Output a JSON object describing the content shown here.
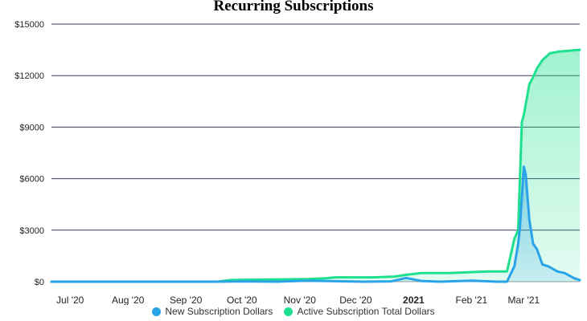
{
  "chart_data": {
    "type": "area",
    "title": "Recurring Subscriptions",
    "xlabel": "",
    "ylabel": "",
    "ylim": [
      0,
      15000
    ],
    "y_ticks": [
      0,
      3000,
      6000,
      9000,
      12000,
      15000
    ],
    "y_tick_labels": [
      "$0",
      "$3000",
      "$6000",
      "$9000",
      "$12000",
      "$15000"
    ],
    "x_range": [
      "2020-06-21",
      "2021-03-31"
    ],
    "x_ticks": [
      {
        "date": "2020-07-01",
        "label": "Jul '20",
        "bold": false
      },
      {
        "date": "2020-08-01",
        "label": "Aug '20",
        "bold": false
      },
      {
        "date": "2020-09-01",
        "label": "Sep '20",
        "bold": false
      },
      {
        "date": "2020-10-01",
        "label": "Oct '20",
        "bold": false
      },
      {
        "date": "2020-11-01",
        "label": "Nov '20",
        "bold": false
      },
      {
        "date": "2020-12-01",
        "label": "Dec '20",
        "bold": false
      },
      {
        "date": "2021-01-01",
        "label": "2021",
        "bold": true
      },
      {
        "date": "2021-02-01",
        "label": "Feb '21",
        "bold": false
      },
      {
        "date": "2021-03-01",
        "label": "Mar '21",
        "bold": false
      }
    ],
    "grid": true,
    "legend_position": "bottom-center",
    "series": [
      {
        "name": "New Subscription Dollars",
        "color": "#2aa4e8",
        "points": [
          [
            "2020-06-21",
            0
          ],
          [
            "2020-09-18",
            0
          ],
          [
            "2020-10-01",
            20
          ],
          [
            "2020-10-20",
            0
          ],
          [
            "2020-11-05",
            60
          ],
          [
            "2020-11-20",
            30
          ],
          [
            "2020-12-05",
            0
          ],
          [
            "2020-12-20",
            20
          ],
          [
            "2020-12-28",
            220
          ],
          [
            "2021-01-05",
            40
          ],
          [
            "2021-01-15",
            0
          ],
          [
            "2021-02-01",
            60
          ],
          [
            "2021-02-15",
            0
          ],
          [
            "2021-02-20",
            0
          ],
          [
            "2021-02-24",
            900
          ],
          [
            "2021-02-26",
            2200
          ],
          [
            "2021-02-27",
            3200
          ],
          [
            "2021-03-01",
            6700
          ],
          [
            "2021-03-02",
            6300
          ],
          [
            "2021-03-04",
            3600
          ],
          [
            "2021-03-06",
            2200
          ],
          [
            "2021-03-08",
            1900
          ],
          [
            "2021-03-11",
            1000
          ],
          [
            "2021-03-14",
            900
          ],
          [
            "2021-03-19",
            600
          ],
          [
            "2021-03-23",
            500
          ],
          [
            "2021-03-28",
            200
          ],
          [
            "2021-03-31",
            100
          ]
        ]
      },
      {
        "name": "Active Subscription Total Dollars",
        "color": "#1ee08e",
        "points": [
          [
            "2020-06-21",
            0
          ],
          [
            "2020-09-18",
            0
          ],
          [
            "2020-09-25",
            100
          ],
          [
            "2020-11-05",
            150
          ],
          [
            "2020-11-15",
            200
          ],
          [
            "2020-11-20",
            250
          ],
          [
            "2020-12-10",
            250
          ],
          [
            "2020-12-22",
            300
          ],
          [
            "2020-12-28",
            400
          ],
          [
            "2021-01-05",
            500
          ],
          [
            "2021-01-20",
            500
          ],
          [
            "2021-02-10",
            600
          ],
          [
            "2021-02-20",
            600
          ],
          [
            "2021-02-24",
            2500
          ],
          [
            "2021-02-26",
            3000
          ],
          [
            "2021-02-28",
            9300
          ],
          [
            "2021-03-01",
            9700
          ],
          [
            "2021-03-04",
            11500
          ],
          [
            "2021-03-06",
            11900
          ],
          [
            "2021-03-08",
            12400
          ],
          [
            "2021-03-11",
            12900
          ],
          [
            "2021-03-15",
            13300
          ],
          [
            "2021-03-20",
            13400
          ],
          [
            "2021-03-25",
            13450
          ],
          [
            "2021-03-31",
            13500
          ]
        ]
      }
    ]
  }
}
